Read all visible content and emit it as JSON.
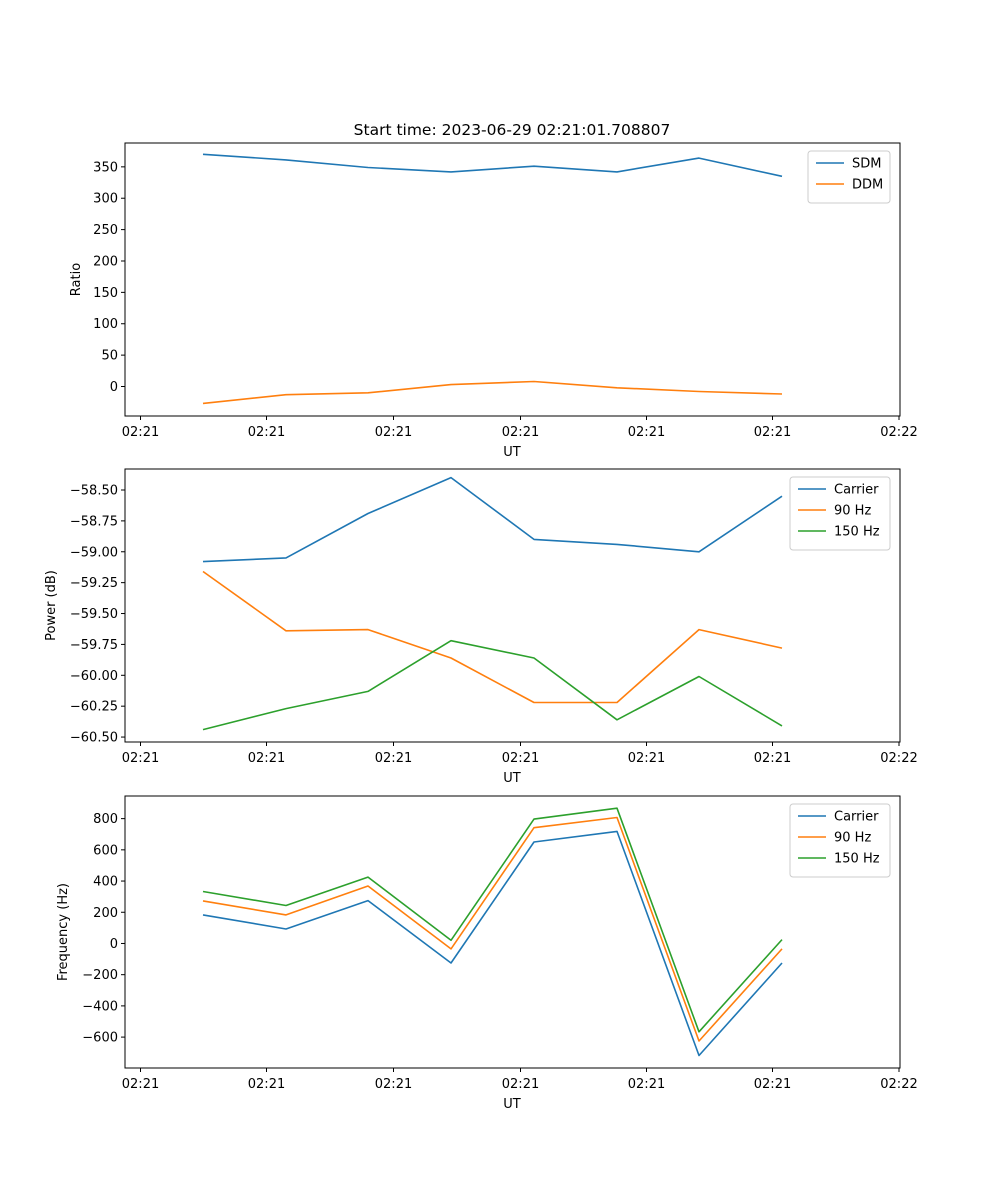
{
  "chart_data": [
    {
      "type": "line",
      "title": "Start time: 2023-06-29 02:21:01.708807",
      "xlabel": "UT",
      "ylabel": "Ratio",
      "xtick_labels": [
        "02:21",
        "02:21",
        "02:21",
        "02:21",
        "02:21",
        "02:21",
        "02:21",
        "02:22"
      ],
      "yticks": [
        0,
        50,
        100,
        150,
        200,
        250,
        300,
        350
      ],
      "ylim": [
        -47,
        388
      ],
      "legend_position": "top-right",
      "series": [
        {
          "name": "SDM",
          "color": "#1f77b4",
          "values": [
            370,
            361,
            349,
            342,
            351,
            342,
            364,
            335
          ]
        },
        {
          "name": "DDM",
          "color": "#ff7f0e",
          "values": [
            -27,
            -13,
            -10,
            3,
            8,
            -2,
            -8,
            -12
          ]
        }
      ]
    },
    {
      "type": "line",
      "title": "",
      "xlabel": "UT",
      "ylabel": "Power (dB)",
      "xtick_labels": [
        "02:21",
        "02:21",
        "02:21",
        "02:21",
        "02:21",
        "02:21",
        "02:21",
        "02:22"
      ],
      "yticks": [
        -58.5,
        -58.75,
        -59.0,
        -59.25,
        -59.5,
        -59.75,
        -60.0,
        -60.25,
        -60.5
      ],
      "ytick_labels": [
        "−58.50",
        "−58.75",
        "−59.00",
        "−59.25",
        "−59.50",
        "−59.75",
        "−60.00",
        "−60.25",
        "−60.50"
      ],
      "ylim": [
        -60.54,
        -58.33
      ],
      "legend_position": "top-right",
      "series": [
        {
          "name": "Carrier",
          "color": "#1f77b4",
          "values": [
            -59.08,
            -59.05,
            -58.69,
            -58.4,
            -58.9,
            -58.94,
            -59.0,
            -58.55
          ]
        },
        {
          "name": "90 Hz",
          "color": "#ff7f0e",
          "values": [
            -59.16,
            -59.64,
            -59.63,
            -59.86,
            -60.22,
            -60.22,
            -59.63,
            -59.78
          ]
        },
        {
          "name": "150 Hz",
          "color": "#2ca02c",
          "values": [
            -60.44,
            -60.27,
            -60.13,
            -59.72,
            -59.86,
            -60.36,
            -60.01,
            -60.41
          ]
        }
      ]
    },
    {
      "type": "line",
      "title": "",
      "xlabel": "UT",
      "ylabel": "Frequency (Hz)",
      "xtick_labels": [
        "02:21",
        "02:21",
        "02:21",
        "02:21",
        "02:21",
        "02:21",
        "02:21",
        "02:22"
      ],
      "yticks": [
        -600,
        -400,
        -200,
        0,
        200,
        400,
        600,
        800
      ],
      "ytick_labels": [
        "−600",
        "−400",
        "−200",
        "0",
        "200",
        "400",
        "600",
        "800"
      ],
      "ylim": [
        -798,
        945
      ],
      "legend_position": "top-right",
      "series": [
        {
          "name": "Carrier",
          "color": "#1f77b4",
          "values": [
            183,
            93,
            275,
            -125,
            650,
            718,
            -718,
            -125
          ]
        },
        {
          "name": "90 Hz",
          "color": "#ff7f0e",
          "values": [
            273,
            183,
            368,
            -35,
            742,
            807,
            -625,
            -35
          ]
        },
        {
          "name": "150 Hz",
          "color": "#2ca02c",
          "values": [
            333,
            243,
            425,
            20,
            797,
            867,
            -566,
            25
          ]
        }
      ]
    }
  ]
}
